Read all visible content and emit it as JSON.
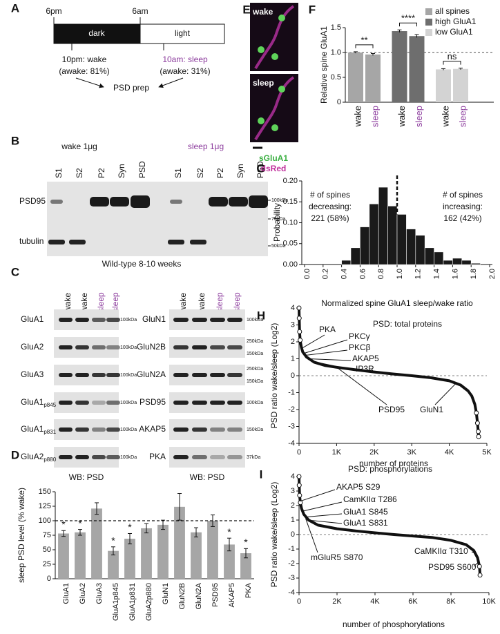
{
  "panel_labels": [
    "A",
    "B",
    "C",
    "D",
    "E",
    "F",
    "G",
    "H",
    "I"
  ],
  "panel_a": {
    "times": [
      "6pm",
      "6am"
    ],
    "phases": [
      "dark",
      "light"
    ],
    "wake": {
      "time": "10pm: wake",
      "awake": "(awake: 81%)"
    },
    "sleep": {
      "time": "10am: sleep",
      "awake": "(awake: 31%)"
    },
    "prep": "PSD prep"
  },
  "panel_b": {
    "conditions": [
      "wake 1μg",
      "sleep 1μg"
    ],
    "lanes": [
      "S1",
      "S2",
      "P2",
      "Syn",
      "PSD"
    ],
    "rows": [
      "PSD95",
      "tubulin"
    ],
    "markers": [
      "100kDa",
      "75kDa",
      "50kDa"
    ]
  },
  "panel_c": {
    "title": "Wild-type 8-10 weeks",
    "columns": [
      "wake",
      "wake",
      "sleep",
      "sleep"
    ],
    "left_rows": [
      {
        "name": "GluA1"
      },
      {
        "name": "GluA2"
      },
      {
        "name": "GluA3"
      },
      {
        "name": "GluA1",
        "sub": "p845"
      },
      {
        "name": "GluA1",
        "sub": "p831"
      },
      {
        "name": "GluA2",
        "sub": "p880"
      }
    ],
    "left_markers": [
      "100kDa"
    ],
    "right_rows": [
      {
        "name": "GluN1",
        "markers": [
          "100kDa"
        ]
      },
      {
        "name": "GluN2B",
        "markers": [
          "250kDa",
          "150kDa"
        ]
      },
      {
        "name": "GluN2A",
        "markers": [
          "250kDa",
          "150kDa"
        ]
      },
      {
        "name": "PSD95",
        "markers": [
          "100kDa"
        ]
      },
      {
        "name": "AKAP5",
        "markers": [
          "150kDa"
        ]
      },
      {
        "name": "PKA",
        "markers": [
          "37kDa"
        ]
      }
    ],
    "footer": "WB: PSD"
  },
  "panel_e": {
    "conditions": [
      "wake",
      "sleep"
    ],
    "channels": [
      "sGluA1",
      "dsRed"
    ]
  },
  "chart_data": [
    {
      "type": "bar",
      "ylabel": "sleep PSD level (% wake)",
      "categories": [
        "GluA1",
        "GluA2",
        "GluA3",
        "GluA1p845",
        "GluA1p831",
        "GluA2p880",
        "GluN1",
        "GluN2B",
        "GluN2A",
        "PSD95",
        "AKAP5",
        "PKA"
      ],
      "values": [
        78,
        80,
        121,
        48,
        69,
        87,
        93,
        124,
        80,
        100,
        59,
        44
      ],
      "errors": [
        5,
        5,
        10,
        7,
        9,
        8,
        8,
        23,
        8,
        10,
        11,
        8
      ],
      "significance": [
        "*",
        "*",
        null,
        "*",
        "*",
        null,
        null,
        null,
        null,
        null,
        "*",
        "*"
      ],
      "color": "#a6a6a6",
      "ylim": [
        0,
        150
      ],
      "yticks": [
        0,
        25,
        50,
        75,
        100,
        125,
        150
      ],
      "reference_line": 100
    },
    {
      "type": "grouped_bar",
      "ylabel": "Relative spine GluA1",
      "categories": [
        "wake",
        "sleep"
      ],
      "category_colors": [
        "#111111",
        "#8b3a9c"
      ],
      "series": [
        {
          "name": "all spines",
          "color": "#a6a6a6",
          "values": [
            1.0,
            0.96
          ],
          "errors": [
            0.015,
            0.02
          ]
        },
        {
          "name": "high GluA1",
          "color": "#6e6e6e",
          "values": [
            1.43,
            1.33
          ],
          "errors": [
            0.025,
            0.03
          ]
        },
        {
          "name": "low GluA1",
          "color": "#d3d3d3",
          "values": [
            0.66,
            0.67
          ],
          "errors": [
            0.015,
            0.015
          ]
        }
      ],
      "significance": [
        "**",
        "****",
        "ns"
      ],
      "ylim": [
        0,
        1.5
      ],
      "yticks": [
        0,
        0.5,
        {
          "value": 1,
          "label": "1.0"
        },
        1.5
      ],
      "reference_line": 1
    },
    {
      "type": "histogram",
      "xlabel": "Normalized spine GluA1 sleep/wake ratio",
      "ylabel": "Probability",
      "bins": [
        0,
        0.1,
        0.2,
        0.3,
        0.4,
        0.5,
        0.6,
        0.7,
        0.8,
        0.9,
        1.0,
        1.1,
        1.2,
        1.3,
        1.4,
        1.5,
        1.6,
        1.7,
        1.8,
        1.9,
        2.0
      ],
      "values": [
        0,
        0,
        0,
        0,
        0.01,
        0.04,
        0.09,
        0.145,
        0.185,
        0.14,
        0.12,
        0.085,
        0.07,
        0.04,
        0.03,
        0.01,
        0.015,
        0.01,
        0.003,
        0
      ],
      "color": "#1a1a1a",
      "xlim": [
        -0.03,
        2.03
      ],
      "xticks": [
        {
          "value": 0,
          "label": "0.0"
        },
        0.2,
        0.4,
        0.6,
        0.8,
        {
          "value": 1,
          "label": "1.0"
        },
        1.2,
        1.4,
        1.6,
        1.8,
        {
          "value": 2,
          "label": "2.0"
        }
      ],
      "ylim": [
        0,
        0.2
      ],
      "yticks": [
        {
          "value": 0,
          "label": "0.00"
        },
        0.05,
        {
          "value": 0.1,
          "label": "0.10"
        },
        0.15,
        {
          "value": 0.2,
          "label": "0.20"
        }
      ],
      "reference_line": 1,
      "annotations": {
        "left": [
          "# of spines",
          "decreasing:",
          "221 (58%)"
        ],
        "right": [
          "# of spines",
          "increasing:",
          "162 (42%)"
        ]
      }
    },
    {
      "type": "rank_scatter",
      "title": "PSD: total proteins",
      "xlabel": "number of proteins",
      "ylabel": "PSD ratio wake/sleep (Log2)",
      "x": [
        0,
        5,
        15,
        30,
        60,
        100,
        200,
        400,
        700,
        1000,
        1500,
        2000,
        2500,
        3000,
        3500,
        4000,
        4300,
        4500,
        4600,
        4680,
        4720,
        4750,
        4770,
        4780
      ],
      "values": [
        4,
        3.4,
        2.6,
        2.1,
        1.7,
        1.4,
        1.1,
        0.8,
        0.6,
        0.5,
        0.35,
        0.22,
        0.1,
        0,
        -0.12,
        -0.3,
        -0.55,
        -0.9,
        -1.2,
        -1.7,
        -2.2,
        -2.8,
        -3.3,
        -3.6
      ],
      "color": "#111111",
      "xlim": [
        0,
        5000
      ],
      "xticks": [
        0,
        {
          "value": 1000,
          "label": "1K"
        },
        {
          "value": 2000,
          "label": "2K"
        },
        {
          "value": 3000,
          "label": "3K"
        },
        {
          "value": 4000,
          "label": "4K"
        },
        {
          "value": 5000,
          "label": "5K"
        }
      ],
      "ylim": [
        -4,
        4
      ],
      "yticks": [
        -4,
        -3,
        -2,
        -1,
        0,
        1,
        2,
        3,
        4
      ],
      "reference_line": 0,
      "annotations": [
        {
          "text": "PKA",
          "x": 60,
          "y": 1.6
        },
        {
          "text": "PKCγ",
          "x": 100,
          "y": 1.3
        },
        {
          "text": "PKCβ",
          "x": 150,
          "y": 1.2
        },
        {
          "text": "AKAP5",
          "x": 250,
          "y": 1.0
        },
        {
          "text": "IP3R",
          "x": 350,
          "y": 0.85
        },
        {
          "text": "PSD95",
          "x": 1000,
          "y": 0.5
        },
        {
          "text": "GluN1",
          "x": 4200,
          "y": -0.4
        }
      ]
    },
    {
      "type": "rank_scatter",
      "title": "PSD: phosphorylations",
      "xlabel": "number of phosphorylations",
      "ylabel": "PSD ratio wake/sleep (Log2)",
      "x": [
        0,
        10,
        30,
        70,
        130,
        250,
        500,
        1000,
        2000,
        3000,
        4000,
        5000,
        6000,
        7000,
        8000,
        8800,
        9200,
        9400,
        9500,
        9530
      ],
      "values": [
        4,
        3.4,
        2.7,
        2.2,
        1.8,
        1.4,
        1.0,
        0.65,
        0.4,
        0.25,
        0.12,
        0,
        -0.1,
        -0.2,
        -0.4,
        -0.7,
        -1.1,
        -1.6,
        -2.2,
        -2.8
      ],
      "color": "#111111",
      "xlim": [
        0,
        10000
      ],
      "xticks": [
        0,
        {
          "value": 2000,
          "label": "2K"
        },
        {
          "value": 4000,
          "label": "4K"
        },
        {
          "value": 6000,
          "label": "6K"
        },
        {
          "value": 8000,
          "label": "8K"
        },
        {
          "value": 10000,
          "label": "10K"
        }
      ],
      "ylim": [
        -4,
        4
      ],
      "yticks": [
        -4,
        -3,
        -2,
        -1,
        0,
        1,
        2,
        3,
        4
      ],
      "reference_line": 0,
      "annotations": [
        {
          "text": "AKAP5 S29",
          "x": 60,
          "y": 2.3
        },
        {
          "text": "CamKIIα T286",
          "x": 150,
          "y": 1.6
        },
        {
          "text": "GluA1 S845",
          "x": 300,
          "y": 1.2
        },
        {
          "text": "GluA1 S831",
          "x": 450,
          "y": 1.0
        },
        {
          "text": "mGluR5 S870",
          "x": 350,
          "y": 1.1
        },
        {
          "text": "CaMKIIα T310",
          "x": 9300,
          "y": -1.3
        },
        {
          "text": "PSD95 S600",
          "x": 9450,
          "y": -1.9
        }
      ]
    }
  ]
}
